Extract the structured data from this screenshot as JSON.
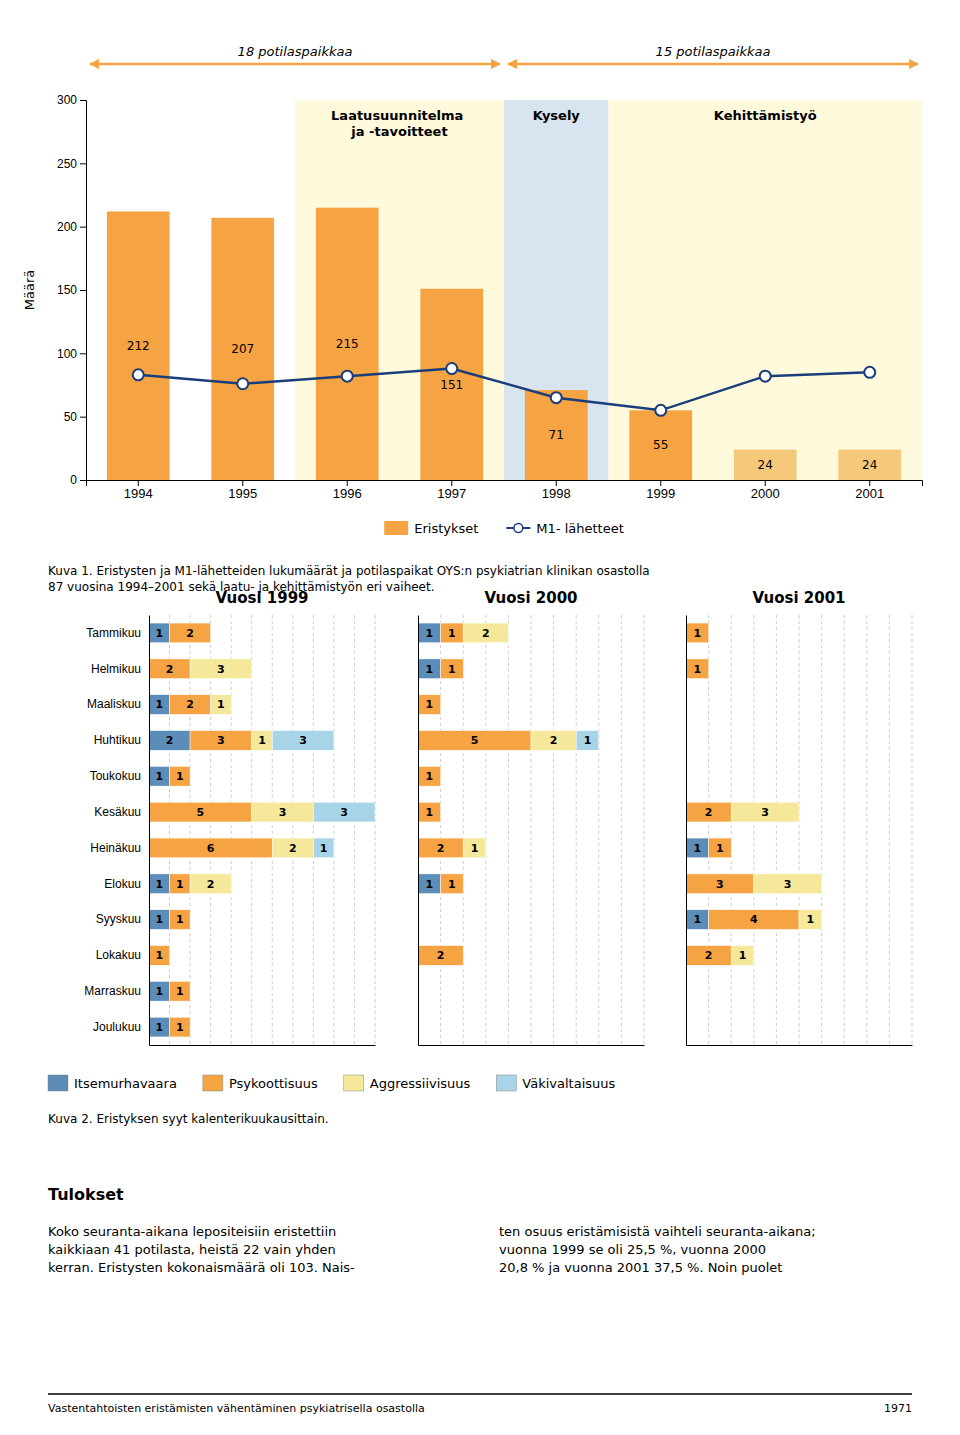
{
  "chart_data": [
    {
      "type": "bar",
      "categories": [
        1994,
        1995,
        1996,
        1997,
        1998,
        1999,
        2000,
        2001
      ],
      "series": [
        {
          "name": "Eristykset",
          "type": "bar",
          "color": "#F5A343",
          "colors": [
            "#F5A343",
            "#F5A343",
            "#F5A343",
            "#F5A343",
            "#F5A343",
            "#F5A343",
            "#F5C87A",
            "#F5C87A"
          ],
          "values": [
            212,
            207,
            215,
            151,
            71,
            55,
            24,
            24
          ],
          "data_labels": true
        },
        {
          "name": "M1- lähetteet",
          "type": "line",
          "color": "#1A3E7A",
          "marker": "circle",
          "values": [
            83,
            76,
            82,
            88,
            65,
            55,
            82,
            85
          ]
        }
      ],
      "ylabel": "Määrä",
      "ylim": [
        0,
        300
      ],
      "yticks": [
        0,
        50,
        100,
        150,
        200,
        250,
        300
      ],
      "grid": false,
      "legend": "bottom",
      "annotations": [
        {
          "type": "span",
          "text": "Laatusuunnitelma\nja -tavoitteet",
          "from": 1996,
          "to": 1997,
          "color": "#FFFADC"
        },
        {
          "type": "span",
          "text": "Kysely",
          "from": 1998,
          "to": 1998,
          "color": "#D8E4F0"
        },
        {
          "type": "span",
          "text": "Kehittämistyö",
          "from": 1999,
          "to": 2001,
          "color": "#FFFADC"
        },
        {
          "type": "arrow",
          "text": "18 potilaspaikkaa",
          "from": 1994,
          "to": 1997,
          "color": "#F5A343"
        },
        {
          "type": "arrow",
          "text": "15 potilaspaikkaa",
          "from": 1998,
          "to": 2001,
          "color": "#F5A343"
        },
        {
          "type": "caption",
          "text": "Kuva 1. Eristysten ja M1-lähetteiden lukumäärät ja potilaspaikat OYS:n psykiatrian klinikan osastolla\n87 vuosina 1994–2001 sekä laatu- ja kehittämistyön eri vaiheet."
        }
      ]
    },
    {
      "type": "bar",
      "orientation": "horizontal",
      "stacked": true,
      "title": "Vuosi 1999",
      "categories": [
        "Tammikuu",
        "Helmikuu",
        "Maaliskuu",
        "Huhtikuu",
        "Toukokuu",
        "Kesäkuu",
        "Heinäkuu",
        "Elokuu",
        "Syyskuu",
        "Lokakuu",
        "Marraskuu",
        "Joulukuu"
      ],
      "series": [
        {
          "name": "Itsemurhavaara",
          "color": "#5B8DB8",
          "values": [
            1,
            0,
            1,
            2,
            1,
            0,
            0,
            1,
            1,
            0,
            1,
            1
          ]
        },
        {
          "name": "Psykoottisuus",
          "color": "#F5A343",
          "values": [
            2,
            2,
            2,
            3,
            1,
            5,
            6,
            1,
            1,
            1,
            1,
            1
          ]
        },
        {
          "name": "Aggressiivisuus",
          "color": "#F5E89A",
          "values": [
            0,
            3,
            1,
            1,
            0,
            3,
            2,
            2,
            0,
            0,
            0,
            0
          ]
        },
        {
          "name": "Väkivaltaisuus",
          "color": "#A8D4E8",
          "values": [
            0,
            0,
            0,
            3,
            0,
            3,
            1,
            0,
            0,
            0,
            0,
            0
          ]
        }
      ],
      "xlim": [
        0,
        11
      ],
      "xticks": [
        1,
        2,
        3,
        4,
        5,
        6,
        7,
        8,
        9,
        10,
        11
      ],
      "grid": true,
      "tick_labels": "y",
      "data_labels": true,
      "legend": "bottom",
      "annotations": [
        {
          "type": "caption",
          "text": "Kuva 2. Eristyksen syyt kalenterikuukausittain."
        }
      ]
    },
    {
      "type": "bar",
      "orientation": "horizontal",
      "stacked": true,
      "title": "Vuosi 2000",
      "categories": [
        "Tammikuu",
        "Helmikuu",
        "Maaliskuu",
        "Huhtikuu",
        "Toukokuu",
        "Kesäkuu",
        "Heinäkuu",
        "Elokuu",
        "Syyskuu",
        "Lokakuu",
        "Marraskuu",
        "Joulukuu"
      ],
      "series": [
        {
          "name": "Itsemurhavaara",
          "color": "#5B8DB8",
          "values": [
            1,
            1,
            0,
            0,
            0,
            0,
            0,
            1,
            0,
            0,
            0,
            0
          ]
        },
        {
          "name": "Psykoottisuus",
          "color": "#F5A343",
          "values": [
            1,
            1,
            1,
            5,
            1,
            1,
            2,
            1,
            0,
            2,
            0,
            0
          ]
        },
        {
          "name": "Aggressiivisuus",
          "color": "#F5E89A",
          "values": [
            2,
            0,
            0,
            2,
            0,
            0,
            1,
            0,
            0,
            0,
            0,
            0
          ]
        },
        {
          "name": "Väkivaltaisuus",
          "color": "#A8D4E8",
          "values": [
            0,
            0,
            0,
            1,
            0,
            0,
            0,
            0,
            0,
            0,
            0,
            0
          ]
        }
      ],
      "xlim": [
        0,
        10
      ],
      "xticks": [
        1,
        2,
        3,
        4,
        5,
        6,
        7,
        8,
        9,
        10
      ],
      "grid": true,
      "tick_labels": false,
      "data_labels": true,
      "legend": false
    },
    {
      "type": "bar",
      "orientation": "horizontal",
      "stacked": true,
      "title": "Vuosi 2001",
      "categories": [
        "Tammikuu",
        "Helmikuu",
        "Maaliskuu",
        "Huhtikuu",
        "Toukokuu",
        "Kesäkuu",
        "Heinäkuu",
        "Elokuu",
        "Syyskuu",
        "Lokakuu",
        "Marraskuu",
        "Joulukuu"
      ],
      "series": [
        {
          "name": "Itsemurhavaara",
          "color": "#5B8DB8",
          "values": [
            0,
            0,
            0,
            0,
            0,
            0,
            1,
            0,
            1,
            0,
            0,
            0
          ]
        },
        {
          "name": "Psykoottisuus",
          "color": "#F5A343",
          "values": [
            1,
            1,
            0,
            0,
            0,
            2,
            1,
            3,
            4,
            2,
            0,
            0
          ]
        },
        {
          "name": "Aggressiivisuus",
          "color": "#F5E89A",
          "values": [
            0,
            0,
            0,
            0,
            0,
            3,
            0,
            3,
            1,
            1,
            0,
            0
          ]
        },
        {
          "name": "Väkivaltaisuus",
          "color": "#A8D4E8",
          "values": [
            0,
            0,
            0,
            0,
            0,
            0,
            0,
            0,
            0,
            0,
            0,
            0
          ]
        }
      ],
      "xlim": [
        0,
        10
      ],
      "xticks": [
        1,
        2,
        3,
        4,
        5,
        6,
        7,
        8,
        9,
        10
      ],
      "grid": true,
      "tick_labels": false,
      "data_labels": true,
      "legend": false
    }
  ],
  "annotations": [
    {
      "type": "heading",
      "text": "Tulokset"
    },
    {
      "type": "paragraph",
      "text": "Koko seuranta-aikana lepositeisiin eristettiin\nkaikkiaan 41 potilasta, heistä 22 vain yhden\nkerran. Eristysten kokonaismäärä oli 103. Nais-"
    },
    {
      "type": "paragraph",
      "text": "ten osuus eristämisistä vaihteli seuranta-aikana;\nvuonna 1999 se oli 25,5 %, vuonna 2000\n20,8 % ja vuonna 2001 37,5 %. Noin puolet"
    },
    {
      "type": "footer",
      "text": "Vastentahtoisten eristämisten vähentäminen psykiatrisella osastolla"
    },
    {
      "type": "footer",
      "text": "1971"
    }
  ]
}
